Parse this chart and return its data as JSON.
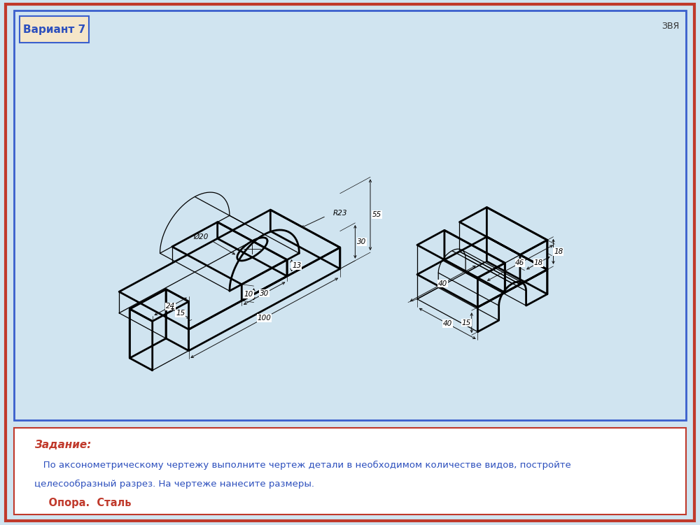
{
  "bg_outer": "#d0e4f0",
  "bg_inner_drawing": "#ffffff",
  "bg_text_box": "#ffffff",
  "border_outer_color": "#c0392b",
  "border_inner_color": "#3a5fcd",
  "border_text_color": "#c0392b",
  "variant_box_color": "#f5e6c8",
  "variant_box_border": "#3a5fcd",
  "variant_text": "Вариант 7",
  "corner_text": "ЗВЯ",
  "task_label": "Задание:",
  "task_text1": "   По аксонометрическому чертежу выполните чертеж детали в необходимом количестве видов, постройте",
  "task_text2": "целесообразный разрез. На чертеже нанесите размеры.",
  "task_material": "    Опора.  Сталь",
  "dim_color": "#111111",
  "line_color": "#000000",
  "text_color_blue": "#2c4fbd",
  "text_color_red": "#c0392b",
  "lw_thick": 2.0,
  "lw_thin": 0.9,
  "lw_dim": 0.7
}
